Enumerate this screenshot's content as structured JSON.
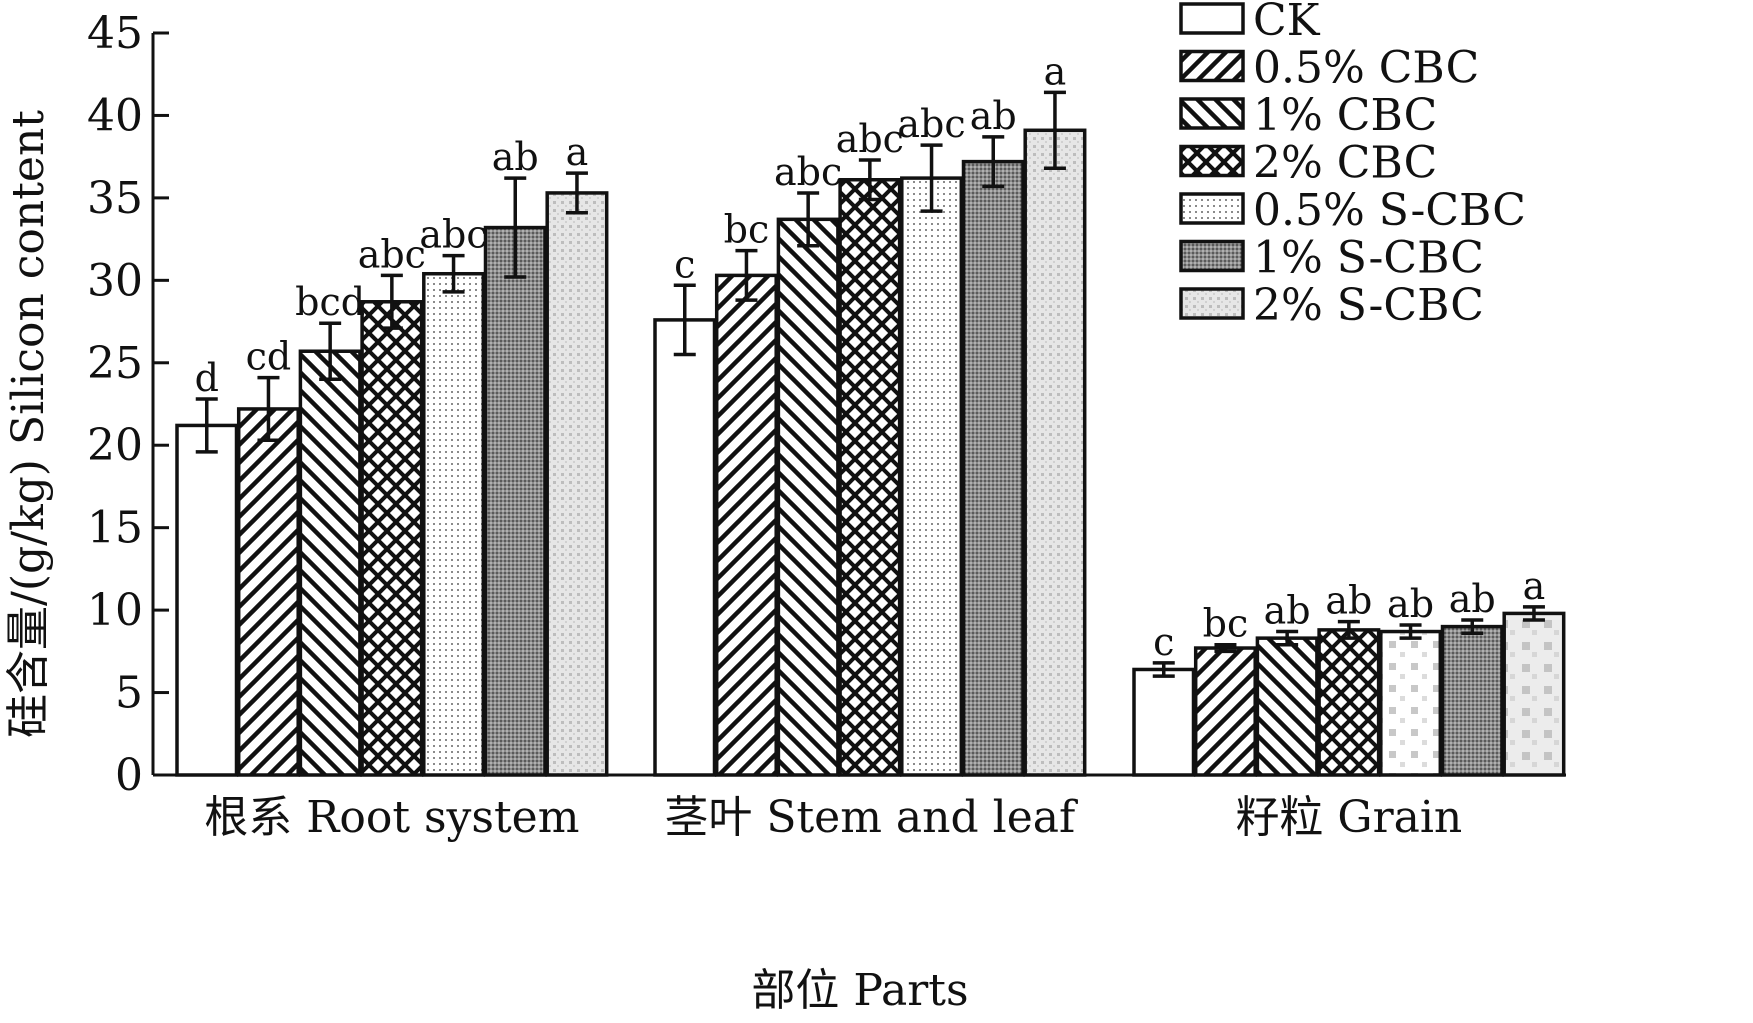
{
  "chart_data": {
    "type": "bar",
    "title": "",
    "xlabel": "部位 Parts",
    "ylabel": "硅含量/(g/kg) Silicon content",
    "ylim": [
      0,
      45
    ],
    "yticks": [
      0,
      5,
      10,
      15,
      20,
      25,
      30,
      35,
      40,
      45
    ],
    "grid": false,
    "legend_position": "top-right",
    "categories": [
      "根系 Root system",
      "茎叶 Stem and leaf",
      "籽粒 Grain"
    ],
    "series": [
      {
        "name": "CK",
        "pattern": "blank",
        "values": [
          21.2,
          27.6,
          6.4
        ],
        "errors": [
          1.6,
          2.1,
          0.4
        ],
        "labels": [
          "d",
          "c",
          "c"
        ]
      },
      {
        "name": "0.5% CBC",
        "pattern": "diagonal-forward",
        "values": [
          22.2,
          30.3,
          7.7
        ],
        "errors": [
          1.9,
          1.5,
          0.2
        ],
        "labels": [
          "cd",
          "bc",
          "bc"
        ]
      },
      {
        "name": "1% CBC",
        "pattern": "diagonal-back",
        "values": [
          25.7,
          33.7,
          8.3
        ],
        "errors": [
          1.7,
          1.6,
          0.4
        ],
        "labels": [
          "bcd",
          "abc",
          "ab"
        ]
      },
      {
        "name": "2% CBC",
        "pattern": "crosshatch",
        "values": [
          28.7,
          36.1,
          8.8
        ],
        "errors": [
          1.6,
          1.2,
          0.5
        ],
        "labels": [
          "abc",
          "abc",
          "ab"
        ]
      },
      {
        "name": "0.5% S-CBC",
        "pattern": "fine-dots",
        "values": [
          30.4,
          36.2,
          8.7
        ],
        "errors": [
          1.1,
          2.0,
          0.4
        ],
        "labels": [
          "abc",
          "abc",
          "ab"
        ]
      },
      {
        "name": "1% S-CBC",
        "pattern": "dense-gray",
        "values": [
          33.2,
          37.2,
          9.0
        ],
        "errors": [
          3.0,
          1.5,
          0.4
        ],
        "labels": [
          "ab",
          "ab",
          "ab"
        ]
      },
      {
        "name": "2% S-CBC",
        "pattern": "light-dots",
        "values": [
          35.3,
          39.1,
          9.8
        ],
        "errors": [
          1.2,
          2.3,
          0.4
        ],
        "labels": [
          "a",
          "a",
          "a"
        ]
      }
    ]
  }
}
